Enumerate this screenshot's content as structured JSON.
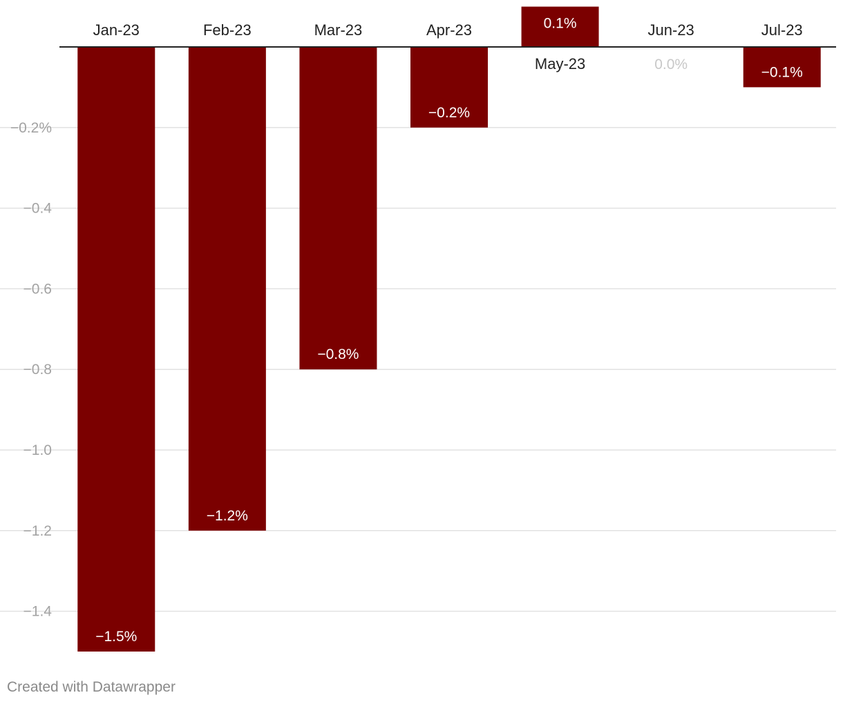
{
  "chart_data": {
    "type": "bar",
    "categories": [
      "Jan-23",
      "Feb-23",
      "Mar-23",
      "Apr-23",
      "May-23",
      "Jun-23",
      "Jul-23"
    ],
    "values": [
      -1.5,
      -1.2,
      -0.8,
      -0.2,
      0.1,
      0.0,
      -0.1
    ],
    "data_labels": [
      "−1.5%",
      "−1.2%",
      "−0.8%",
      "−0.2%",
      "0.1%",
      "0.0%",
      "−0.1%"
    ],
    "y_ticks": [
      -0.2,
      -0.4,
      -0.6,
      -0.8,
      -1.0,
      -1.2,
      -1.4
    ],
    "y_tick_labels": [
      "−0.2%",
      "−0.4",
      "−0.6",
      "−0.8",
      "−1.0",
      "−1.2",
      "−1.4"
    ],
    "ylim": [
      -1.5,
      0.1
    ],
    "grid": true,
    "bar_color": "#7b0000",
    "title": "",
    "xlabel": "",
    "ylabel": ""
  },
  "footer": {
    "credit": "Created with Datawrapper"
  }
}
